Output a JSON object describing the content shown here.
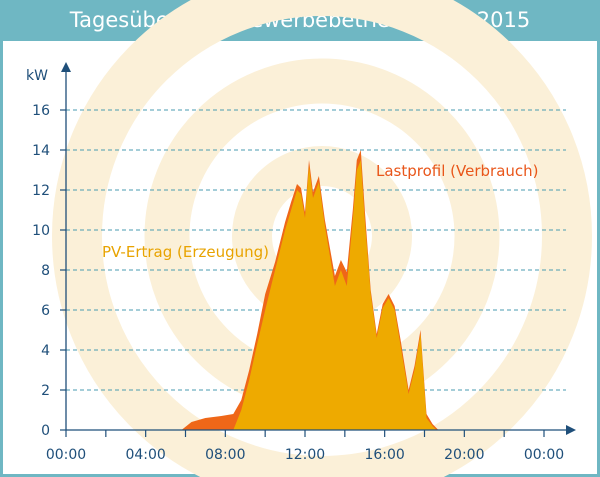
{
  "title": "Tagesübersicht Gewerbebetrieb 20.10.2015",
  "chart_data": {
    "type": "area",
    "title": "Tagesübersicht Gewerbebetrieb 20.10.2015",
    "ylabel": "kW",
    "xlabel": "",
    "xlim": [
      0,
      24
    ],
    "ylim": [
      0,
      17
    ],
    "yticks": [
      0,
      2,
      4,
      6,
      8,
      10,
      12,
      14,
      16
    ],
    "xticks": [
      {
        "h": 0,
        "label": "00:00"
      },
      {
        "h": 4,
        "label": "04:00"
      },
      {
        "h": 8,
        "label": "08:00"
      },
      {
        "h": 12,
        "label": "12:00"
      },
      {
        "h": 16,
        "label": "16:00"
      },
      {
        "h": 20,
        "label": "20:00"
      },
      {
        "h": 24,
        "label": "00:00"
      }
    ],
    "grid": true,
    "series": [
      {
        "name": "Lastprofil (Verbrauch)",
        "color": "#ef6718",
        "x": [
          5.8,
          6.3,
          7.0,
          7.8,
          8.4,
          8.8,
          9.2,
          9.6,
          10.0,
          10.5,
          11.0,
          11.3,
          11.6,
          11.8,
          12.0,
          12.2,
          12.4,
          12.7,
          13.0,
          13.5,
          13.8,
          14.1,
          14.4,
          14.6,
          14.8,
          15.0,
          15.3,
          15.6,
          15.9,
          16.2,
          16.5,
          16.8,
          17.2,
          17.5,
          17.8,
          18.1,
          18.4,
          18.7
        ],
        "values": [
          0,
          0.4,
          0.6,
          0.7,
          0.8,
          1.5,
          3.0,
          4.8,
          6.8,
          8.4,
          10.4,
          11.4,
          12.3,
          12.1,
          10.9,
          13.5,
          11.9,
          12.7,
          10.5,
          7.7,
          8.5,
          7.9,
          11.0,
          13.5,
          14.0,
          11.0,
          7.0,
          4.8,
          6.3,
          6.8,
          6.2,
          4.5,
          2.0,
          3.2,
          5.0,
          0.8,
          0.3,
          0
        ]
      },
      {
        "name": "PV-Ertrag (Erzeugung)",
        "color": "#eeaa00",
        "x": [
          8.4,
          8.8,
          9.2,
          9.6,
          10.0,
          10.5,
          11.0,
          11.3,
          11.6,
          11.8,
          12.0,
          12.2,
          12.4,
          12.7,
          13.0,
          13.5,
          13.8,
          14.1,
          14.4,
          14.6,
          14.8,
          15.0,
          15.3,
          15.6,
          15.9,
          16.2,
          16.5,
          16.8,
          17.2,
          17.5,
          17.8,
          18.1,
          18.4,
          18.6
        ],
        "values": [
          0,
          1.0,
          2.5,
          4.3,
          6.0,
          8.0,
          10.0,
          11.0,
          12.0,
          11.8,
          10.6,
          13.2,
          11.6,
          12.4,
          10.2,
          7.2,
          8.0,
          7.2,
          10.5,
          13.0,
          13.5,
          10.5,
          6.8,
          4.6,
          6.1,
          6.6,
          6.0,
          4.2,
          1.8,
          3.0,
          4.8,
          0.6,
          0.2,
          0
        ]
      }
    ],
    "annotations": [
      {
        "text": "Lastprofil (Verbrauch)",
        "series": "Lastprofil (Verbrauch)"
      },
      {
        "text": "PV-Ertrag (Erzeugung)",
        "series": "PV-Ertrag (Erzeugung)"
      }
    ]
  }
}
